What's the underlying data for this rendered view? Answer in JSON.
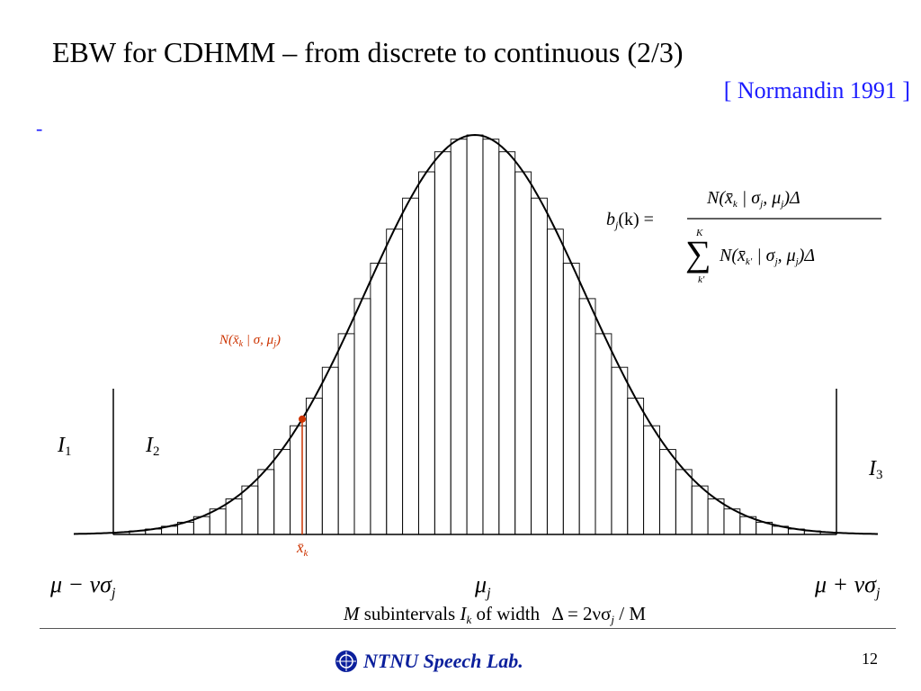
{
  "slide": {
    "title": "EBW for CDHMM – from discrete to continuous (2/3)",
    "citation": "[ Normandin 1991 ]",
    "bullet": "-",
    "page_number": "12",
    "footer": "NTNU Speech Lab."
  },
  "diagram": {
    "histogram_subintervals": 45,
    "labels": {
      "I1": "I",
      "I1_sub": "1",
      "I2": "I",
      "I2_sub": "2",
      "I3": "I",
      "I3_sub": "3",
      "left_bound": "μ − νσ",
      "left_bound_sub": "j",
      "center": "μ",
      "center_sub": "j",
      "right_bound": "μ + νσ",
      "right_bound_sub": "j",
      "xk": "x̄",
      "xk_sub": "k",
      "point_label_prefix": "N(x̄",
      "point_label_mid": " | σ, μ",
      "point_label_close": ")"
    },
    "caption": {
      "M": "M",
      "text1": " subintervals ",
      "I": "I",
      "I_sub": "k",
      "text2": " of width ",
      "formula": "Δ = 2νσ",
      "formula_sub": "j",
      "formula_end": " / M"
    },
    "formula": {
      "lhs": "b",
      "lhs_sub": "j",
      "lhs_arg": "(k) =",
      "numerator": "N(x̄",
      "num_sub": "k",
      "num_rest": " | σ",
      "num_sub2": "j",
      "num_rest2": ", μ",
      "num_sub3": "j",
      "num_end": ")Δ",
      "sum_upper": "K",
      "sum_lower": "k′",
      "denominator": "N(x̄",
      "den_sub": "k′",
      "den_rest": " | σ",
      "den_sub2": "j",
      "den_rest2": ", μ",
      "den_sub3": "j",
      "den_end": ")Δ"
    },
    "colors": {
      "highlight": "#cc3300",
      "line": "#000000"
    }
  }
}
